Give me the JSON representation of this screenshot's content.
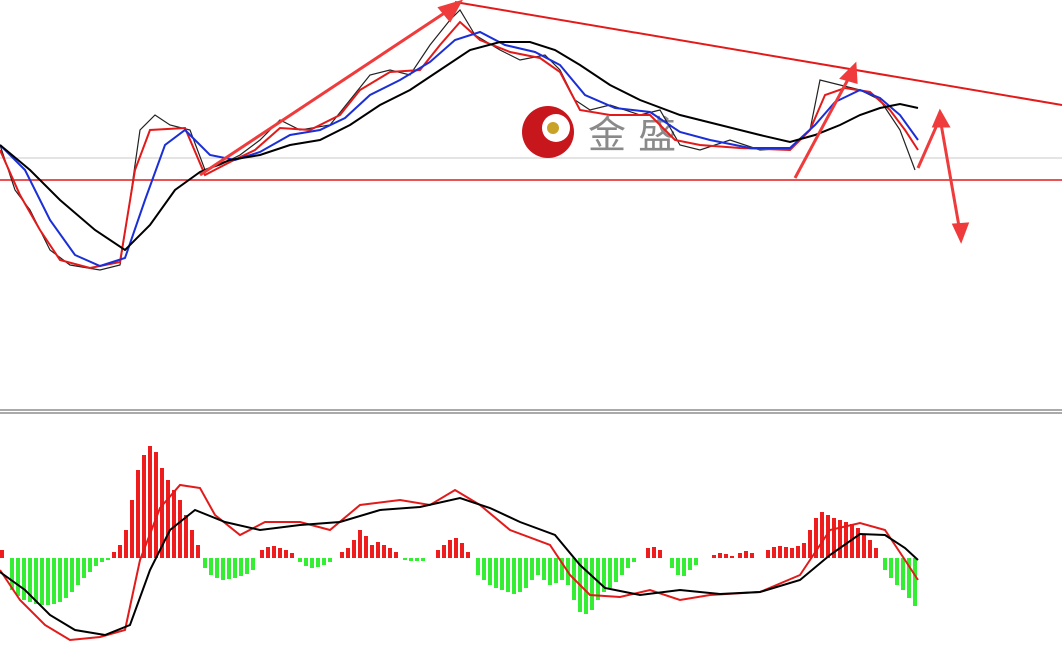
{
  "watermark": {
    "text": "金 盛"
  }
}
